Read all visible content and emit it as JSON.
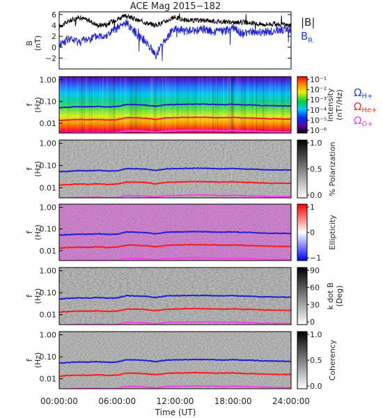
{
  "title": "ACE Mag 2015−182",
  "colors": {
    "black": "#000000",
    "blue": "#1f1fd6",
    "red": "#ff1a1a",
    "magenta": "#ff3df0",
    "label_blue": "#1f3cff",
    "label_red": "#ff2a2a",
    "label_magenta": "#ff3df0"
  },
  "legend_top": {
    "b_total": "|B|",
    "b_r": "B",
    "b_r_sub": "R"
  },
  "legend_gyro": [
    {
      "label": "Ω",
      "sub": "H+",
      "color": "#1f3cff"
    },
    {
      "label": "Ω",
      "sub": "He+",
      "color": "#ff2a2a"
    },
    {
      "label": "Ω",
      "sub": "O+",
      "color": "#ff3df0"
    }
  ],
  "x_axis": {
    "label": "Time (UT)",
    "ticks": [
      "00:00:00",
      "06:00:00",
      "12:00:00",
      "18:00:00",
      "24:00:00"
    ]
  },
  "chart_data": [
    {
      "type": "line",
      "panel": "B-field",
      "ylabel": "B",
      "yunit": "(nT)",
      "ylim": [
        -4,
        6.5
      ],
      "yticks": [
        "6",
        "4",
        "2",
        "0",
        "−2"
      ],
      "series": [
        {
          "name": "|B|",
          "x": [
            0,
            1,
            2,
            3,
            4,
            5,
            6,
            7,
            8,
            9,
            10,
            11,
            12,
            13,
            14,
            15,
            16,
            17,
            18,
            19,
            20,
            21,
            22,
            23,
            24
          ],
          "values": [
            3.8,
            4.8,
            5.5,
            5.0,
            4.0,
            4.3,
            5.2,
            5.8,
            5.0,
            4.5,
            4.0,
            4.8,
            5.5,
            5.0,
            4.9,
            5.0,
            4.8,
            4.7,
            4.5,
            4.6,
            4.4,
            4.2,
            4.3,
            4.1,
            4.0
          ]
        },
        {
          "name": "B_R",
          "x": [
            0,
            1,
            2,
            3,
            4,
            5,
            6,
            7,
            8,
            9,
            10,
            11,
            12,
            13,
            14,
            15,
            16,
            17,
            18,
            19,
            20,
            21,
            22,
            23,
            24
          ],
          "values": [
            0.5,
            1.5,
            1.0,
            1.5,
            2.0,
            2.3,
            3.5,
            4.5,
            2.5,
            1.0,
            -1.5,
            1.5,
            3.5,
            3.0,
            3.0,
            3.3,
            2.8,
            3.0,
            3.5,
            2.5,
            2.8,
            2.7,
            3.0,
            3.2,
            3.3
          ]
        }
      ]
    },
    {
      "type": "heatmap",
      "panel": "Power spectrum",
      "ylabel": "f",
      "yunit": "(Hz)",
      "yscale": "log",
      "yticks": [
        "1.00",
        "0.10",
        "0.01"
      ],
      "colorbar": {
        "label": "Intensity",
        "unit": "(nT²/Hz)",
        "ticks": [
          "10⁻¹",
          "10⁻²",
          "10⁻³",
          "10⁻⁴",
          "10⁻⁵",
          "10⁻⁶"
        ],
        "scale": "rainbow"
      }
    },
    {
      "type": "heatmap",
      "panel": "Polarization",
      "ylabel": "f",
      "yunit": "(Hz)",
      "yticks": [
        "1.00",
        "0.10",
        "0.01"
      ],
      "colorbar": {
        "label": "% Polarization",
        "ticks": [
          "1.0",
          "0.5",
          "0.0"
        ],
        "scale": "gray"
      }
    },
    {
      "type": "heatmap",
      "panel": "Ellipticity",
      "ylabel": "f",
      "yunit": "(Hz)",
      "yticks": [
        "1.00",
        "0.10",
        "0.01"
      ],
      "colorbar": {
        "label": "Ellipticity",
        "ticks": [
          "1",
          "0",
          "−1"
        ],
        "scale": "blue-white-red"
      }
    },
    {
      "type": "heatmap",
      "panel": "k dot B",
      "ylabel": "f",
      "yunit": "(Hz)",
      "yticks": [
        "1.00",
        "0.10",
        "0.01"
      ],
      "colorbar": {
        "label": "k dot B",
        "unit": "(Deg)",
        "ticks": [
          "90",
          "60",
          "30",
          "0"
        ],
        "scale": "gray"
      }
    },
    {
      "type": "heatmap",
      "panel": "Coherency",
      "ylabel": "f",
      "yunit": "(Hz)",
      "yticks": [
        "1.00",
        "0.10",
        "0.01"
      ],
      "colorbar": {
        "label": "Coherency",
        "ticks": [
          "1.0",
          "0.5",
          "0.0"
        ],
        "scale": "gray"
      }
    }
  ],
  "gyrofrequency_curves": {
    "x": [
      0,
      1,
      2,
      3,
      4,
      5,
      6,
      7,
      8,
      9,
      10,
      11,
      12,
      13,
      14,
      15,
      16,
      17,
      18,
      19,
      20,
      21,
      22,
      23,
      24
    ],
    "H+": [
      0.052,
      0.055,
      0.058,
      0.057,
      0.06,
      0.056,
      0.058,
      0.073,
      0.071,
      0.068,
      0.06,
      0.07,
      0.073,
      0.074,
      0.075,
      0.075,
      0.073,
      0.071,
      0.074,
      0.07,
      0.069,
      0.065,
      0.064,
      0.063,
      0.062
    ],
    "He+": [
      0.013,
      0.014,
      0.0145,
      0.0143,
      0.015,
      0.014,
      0.0145,
      0.018,
      0.0178,
      0.017,
      0.015,
      0.0175,
      0.018,
      0.0185,
      0.0188,
      0.0187,
      0.0183,
      0.0178,
      0.0185,
      0.0175,
      0.0172,
      0.0163,
      0.016,
      0.0158,
      0.0155
    ],
    "O+": [
      0.0033,
      0.0034,
      0.0036,
      0.0036,
      0.0037,
      0.0035,
      0.0036,
      0.0045,
      0.0044,
      0.0042,
      0.0038,
      0.0044,
      0.0045,
      0.0046,
      0.0047,
      0.0047,
      0.0046,
      0.0044,
      0.0046,
      0.0044,
      0.0043,
      0.0041,
      0.004,
      0.004,
      0.0039
    ]
  }
}
